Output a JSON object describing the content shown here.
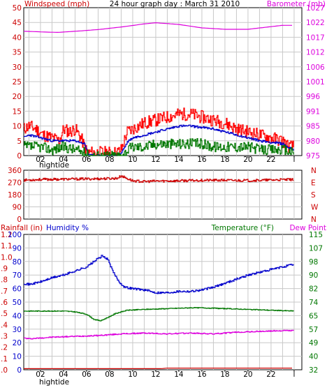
{
  "chart_data": [
    {
      "type": "line",
      "title": "24 hour graph day : March 31 2010",
      "left_label": "Windspeed (mph)",
      "right_label": "Barometer (mb)",
      "x_ticks": [
        "02",
        "04",
        "06",
        "08",
        "10",
        "12",
        "14",
        "16",
        "18",
        "20",
        "22",
        "l"
      ],
      "x_annotation": "hightide",
      "y_ticks_left": [
        "0",
        "5",
        "10",
        "15",
        "20",
        "25",
        "30",
        "35",
        "40",
        "45",
        "50"
      ],
      "y_ticks_right": [
        "975",
        "980",
        "985",
        "991",
        "996",
        "1001",
        "1006",
        "1012",
        "1017",
        "1022",
        "1027"
      ],
      "ylim_left": [
        0,
        50
      ],
      "ylim_right": [
        975,
        1027
      ],
      "x_range_hours": [
        0,
        24
      ],
      "colors": {
        "gust": "#ff0000",
        "average": "#0000cc",
        "speed": "#007700",
        "barometer": "#dd00dd",
        "grid": "#c8c8c8"
      },
      "series": [
        {
          "key": "gust",
          "axis": "left",
          "style": "step",
          "seed": 11,
          "noise": 2.2,
          "points": [
            [
              0,
              6
            ],
            [
              0.5,
              9
            ],
            [
              1,
              10
            ],
            [
              1.6,
              9
            ],
            [
              2.2,
              7
            ],
            [
              3,
              6
            ],
            [
              3.6,
              5
            ],
            [
              4,
              9
            ],
            [
              4.5,
              8
            ],
            [
              5,
              9
            ],
            [
              5.5,
              6
            ],
            [
              5.9,
              2
            ],
            [
              6.2,
              1
            ],
            [
              7,
              1
            ],
            [
              8,
              1
            ],
            [
              8.6,
              1
            ],
            [
              9,
              2
            ],
            [
              9.5,
              8
            ],
            [
              10,
              9
            ],
            [
              11,
              11
            ],
            [
              12,
              12
            ],
            [
              13,
              13
            ],
            [
              14,
              14
            ],
            [
              15,
              14
            ],
            [
              16,
              13
            ],
            [
              17,
              12
            ],
            [
              18,
              11
            ],
            [
              19,
              9
            ],
            [
              20,
              8
            ],
            [
              21,
              7
            ],
            [
              22,
              6
            ],
            [
              23,
              5
            ],
            [
              23.5,
              3
            ],
            [
              24,
              3
            ]
          ]
        },
        {
          "key": "average",
          "axis": "left",
          "style": "step",
          "seed": 23,
          "noise": 0.4,
          "points": [
            [
              0,
              5
            ],
            [
              0.5,
              6
            ],
            [
              1,
              7
            ],
            [
              2,
              6
            ],
            [
              3,
              5
            ],
            [
              4,
              5
            ],
            [
              5,
              5
            ],
            [
              5.8,
              4
            ],
            [
              6.2,
              0
            ],
            [
              8.6,
              0
            ],
            [
              9,
              1
            ],
            [
              9.6,
              5
            ],
            [
              10,
              6
            ],
            [
              11,
              7
            ],
            [
              12,
              8
            ],
            [
              13,
              9
            ],
            [
              14,
              10
            ],
            [
              15,
              10
            ],
            [
              16,
              9.5
            ],
            [
              17,
              9
            ],
            [
              18,
              8
            ],
            [
              19,
              7
            ],
            [
              20,
              6
            ],
            [
              21,
              5
            ],
            [
              22,
              4.5
            ],
            [
              23,
              4
            ],
            [
              23.6,
              2.5
            ],
            [
              24,
              2
            ]
          ]
        },
        {
          "key": "speed",
          "axis": "left",
          "style": "step",
          "seed": 37,
          "noise": 1.8,
          "points": [
            [
              0,
              3
            ],
            [
              1,
              3
            ],
            [
              2,
              3
            ],
            [
              3,
              2
            ],
            [
              4,
              3
            ],
            [
              5,
              2
            ],
            [
              5.8,
              1
            ],
            [
              6.2,
              0
            ],
            [
              8.6,
              0
            ],
            [
              9,
              0
            ],
            [
              9.6,
              2
            ],
            [
              10,
              3
            ],
            [
              11,
              3
            ],
            [
              12,
              4
            ],
            [
              13,
              4
            ],
            [
              14,
              4
            ],
            [
              15,
              4
            ],
            [
              16,
              4
            ],
            [
              17,
              3
            ],
            [
              18,
              3
            ],
            [
              19,
              3
            ],
            [
              20,
              3
            ],
            [
              21,
              2
            ],
            [
              22,
              2
            ],
            [
              23,
              2
            ],
            [
              24,
              1
            ]
          ]
        },
        {
          "key": "barometer",
          "axis": "right",
          "style": "line",
          "seed": 0,
          "noise": 0,
          "points": [
            [
              0,
              1018.8
            ],
            [
              2,
              1018.5
            ],
            [
              3.5,
              1018.3
            ],
            [
              5,
              1018.7
            ],
            [
              7,
              1019.3
            ],
            [
              9,
              1020.2
            ],
            [
              11,
              1021.3
            ],
            [
              12,
              1021.7
            ],
            [
              14,
              1021.1
            ],
            [
              16,
              1019.9
            ],
            [
              18,
              1019.4
            ],
            [
              20,
              1019.4
            ],
            [
              21.5,
              1020.1
            ],
            [
              23,
              1020.8
            ],
            [
              24,
              1020.8
            ]
          ]
        }
      ]
    },
    {
      "type": "line",
      "title": "",
      "y_ticks_left": [
        "0",
        "90",
        "180",
        "270",
        "360"
      ],
      "y_ticks_right": [
        "N",
        "E",
        "S",
        "W",
        "N"
      ],
      "ylim": [
        0,
        360
      ],
      "x_range_hours": [
        0,
        24
      ],
      "colors": {
        "direction": "#cc0000",
        "grid": "#c8c8c8"
      },
      "series": [
        {
          "key": "direction",
          "axis": "left",
          "style": "step",
          "seed": 53,
          "noise": 9,
          "points": [
            [
              0,
              285
            ],
            [
              2,
              292
            ],
            [
              4,
              294
            ],
            [
              6,
              296
            ],
            [
              7.5,
              298
            ],
            [
              8.6,
              300
            ],
            [
              9,
              318
            ],
            [
              9.3,
              306
            ],
            [
              10,
              282
            ],
            [
              11,
              276
            ],
            [
              12,
              280
            ],
            [
              14,
              282
            ],
            [
              16,
              286
            ],
            [
              18,
              286
            ],
            [
              20,
              284
            ],
            [
              22,
              288
            ],
            [
              24,
              292
            ]
          ]
        }
      ]
    },
    {
      "type": "line",
      "title": "",
      "labels": {
        "rainfall": "Rainfall (in)",
        "humidity": "Humidity %",
        "temperature": "Temperature (°F)",
        "dew_point": "Dew Point"
      },
      "x_ticks": [
        "02",
        "04",
        "06",
        "08",
        "10",
        "12",
        "14",
        "16",
        "18",
        "20",
        "22",
        "l"
      ],
      "x_annotation": "hightide",
      "y_ticks_humidity": [
        "0",
        "10",
        "20",
        "30",
        "40",
        "50",
        "60",
        "70",
        "80",
        "90",
        "100"
      ],
      "y_ticks_rain": [
        ".0",
        ".1",
        ".2",
        ".3",
        ".4",
        ".5",
        ".6",
        ".7",
        ".8",
        ".9",
        "1.0",
        "1.1",
        "1.2"
      ],
      "y_ticks_temp": [
        "32",
        "40",
        "49",
        "57",
        "65",
        "74",
        "82",
        "90",
        "98",
        "107",
        "115"
      ],
      "ylim_humidity": [
        0,
        100
      ],
      "ylim_rain": [
        0,
        1.2
      ],
      "ylim_temp": [
        32,
        115
      ],
      "x_range_hours": [
        0,
        24
      ],
      "colors": {
        "rainfall": "#cc0000",
        "humidity": "#0000cc",
        "temperature": "#007700",
        "dew_point": "#dd00dd",
        "grid": "#c8c8c8"
      },
      "series": [
        {
          "key": "humidity",
          "axis": "humidity",
          "style": "step",
          "seed": 71,
          "noise": 0.8,
          "points": [
            [
              0,
              60
            ],
            [
              0.5,
              64
            ],
            [
              1,
              63
            ],
            [
              2,
              65
            ],
            [
              3,
              68
            ],
            [
              4,
              70
            ],
            [
              5,
              73
            ],
            [
              6,
              76
            ],
            [
              6.8,
              81
            ],
            [
              7.3,
              84
            ],
            [
              7.8,
              82
            ],
            [
              8.3,
              72
            ],
            [
              8.8,
              65
            ],
            [
              9.3,
              61
            ],
            [
              10,
              60
            ],
            [
              11,
              59
            ],
            [
              12,
              57
            ],
            [
              13,
              57
            ],
            [
              14,
              58
            ],
            [
              15,
              58
            ],
            [
              16,
              59
            ],
            [
              17,
              61
            ],
            [
              18,
              64
            ],
            [
              19,
              67
            ],
            [
              20,
              70
            ],
            [
              21,
              72
            ],
            [
              22,
              74
            ],
            [
              23,
              76
            ],
            [
              24,
              78
            ]
          ]
        },
        {
          "key": "temperature",
          "axis": "temp",
          "style": "step",
          "seed": 83,
          "noise": 0.25,
          "points": [
            [
              0,
              68
            ],
            [
              2,
              68
            ],
            [
              4,
              68
            ],
            [
              5,
              67.5
            ],
            [
              6,
              66
            ],
            [
              6.6,
              63
            ],
            [
              7.2,
              62
            ],
            [
              7.8,
              64
            ],
            [
              8.5,
              66.5
            ],
            [
              9.5,
              68.5
            ],
            [
              11,
              69
            ],
            [
              13,
              69.5
            ],
            [
              15,
              70
            ],
            [
              16,
              70
            ],
            [
              18,
              69.5
            ],
            [
              20,
              69
            ],
            [
              22,
              68.5
            ],
            [
              24,
              68
            ]
          ]
        },
        {
          "key": "dew_point",
          "axis": "temp",
          "style": "step",
          "seed": 97,
          "noise": 0.35,
          "points": [
            [
              0,
              52
            ],
            [
              1,
              51
            ],
            [
              2,
              51.5
            ],
            [
              3,
              52
            ],
            [
              5,
              52.5
            ],
            [
              7,
              53
            ],
            [
              9,
              54
            ],
            [
              11,
              54.5
            ],
            [
              13,
              54
            ],
            [
              15,
              54.5
            ],
            [
              17,
              54
            ],
            [
              19,
              55
            ],
            [
              21,
              55.5
            ],
            [
              23,
              56
            ],
            [
              24,
              56
            ]
          ]
        },
        {
          "key": "rainfall",
          "axis": "rain",
          "style": "line",
          "seed": 0,
          "noise": 0,
          "points": [
            [
              0,
              0.01
            ],
            [
              12.5,
              0.01
            ],
            [
              13,
              0.015
            ],
            [
              24,
              0.015
            ]
          ]
        }
      ]
    }
  ]
}
